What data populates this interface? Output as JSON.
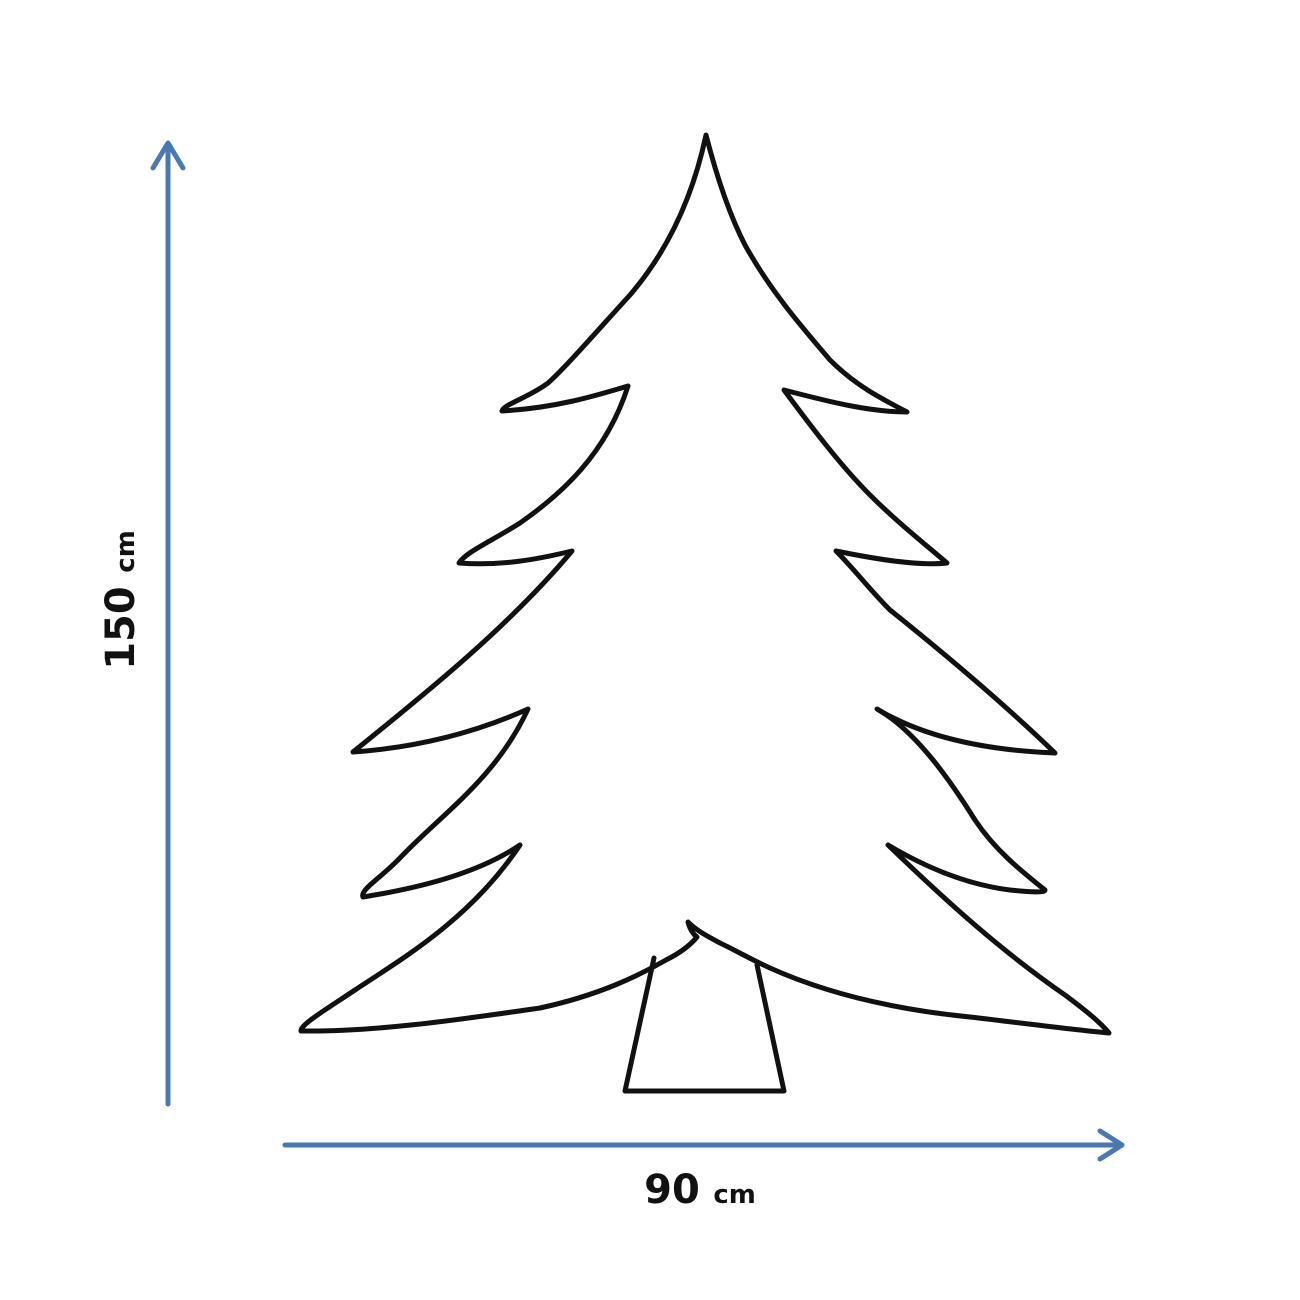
{
  "height_dimension": {
    "value": "150",
    "unit": "cm"
  },
  "width_dimension": {
    "value": "90",
    "unit": "cm"
  },
  "colors": {
    "arrow": "#4a78b0",
    "outline": "#111111",
    "background": "#ffffff"
  },
  "icons": {
    "tree": "christmas-tree-outline-icon",
    "height_arrow": "arrow-up-icon",
    "width_arrow": "arrow-right-icon"
  }
}
